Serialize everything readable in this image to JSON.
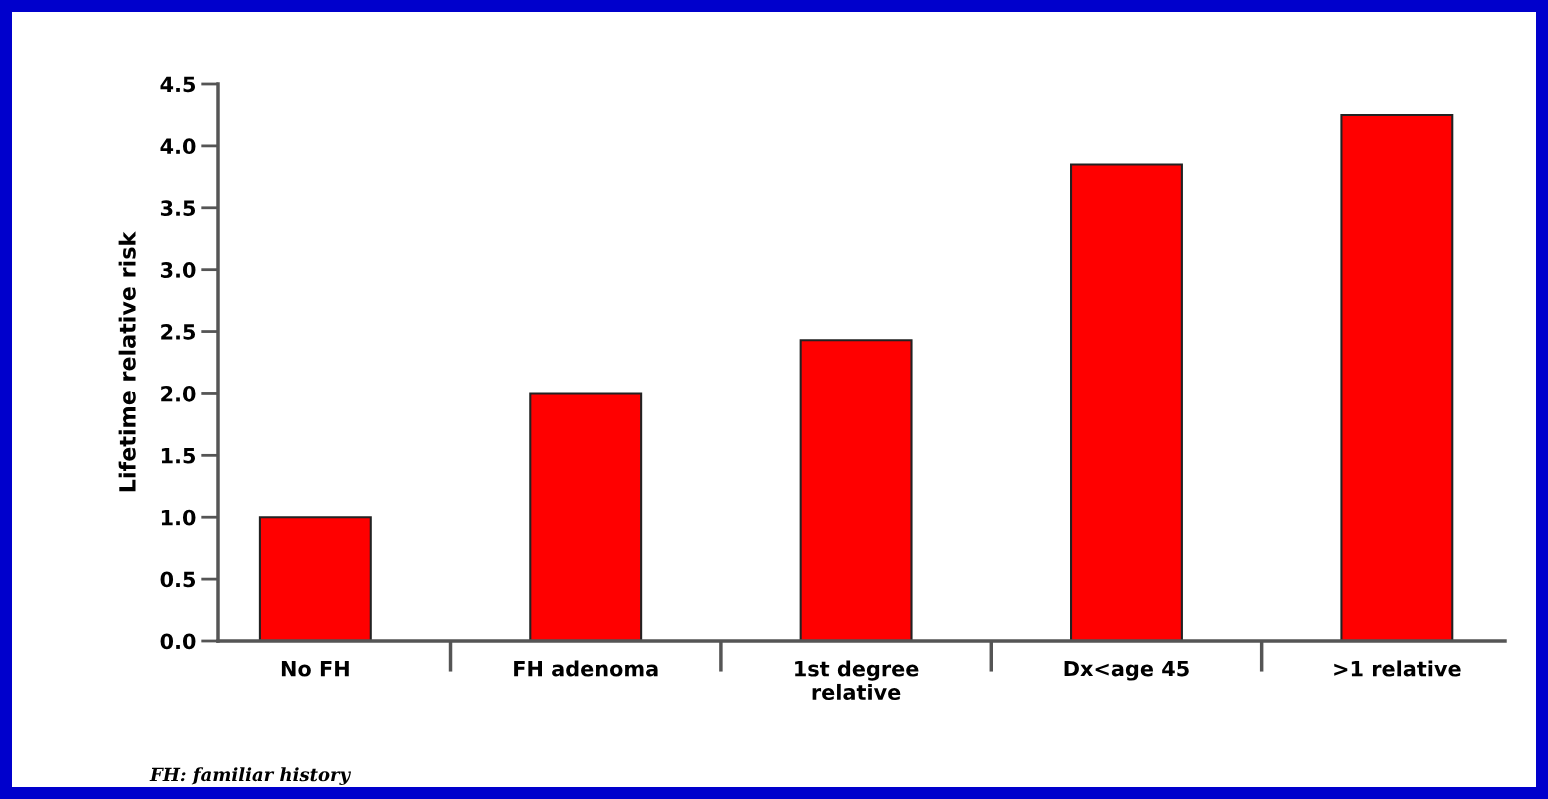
{
  "chart_data": {
    "type": "bar",
    "ylabel": "Lifetime relative risk",
    "categories": [
      "No FH",
      "FH adenoma",
      "1st degree\nrelative",
      "Dx<age 45",
      ">1 relative"
    ],
    "values": [
      1.0,
      2.0,
      2.43,
      3.85,
      4.25
    ],
    "color": "#ff0000",
    "ylim": [
      0,
      4.5
    ],
    "yticks": [
      {
        "value": 0,
        "label": "0.0"
      },
      {
        "value": 0.5,
        "label": "0.5"
      },
      {
        "value": 1.0,
        "label": "1.0"
      },
      {
        "value": 1.5,
        "label": "1.5"
      },
      {
        "value": 2.0,
        "label": "2.0"
      },
      {
        "value": 2.5,
        "label": "2.5"
      },
      {
        "value": 3.0,
        "label": "3.0"
      },
      {
        "value": 3.5,
        "label": "3.5"
      },
      {
        "value": 4.0,
        "label": "4.0"
      },
      {
        "value": 4.5,
        "label": "4.5"
      }
    ],
    "grid": false,
    "legend": false,
    "annotations": [
      "FH: familiar history"
    ]
  }
}
